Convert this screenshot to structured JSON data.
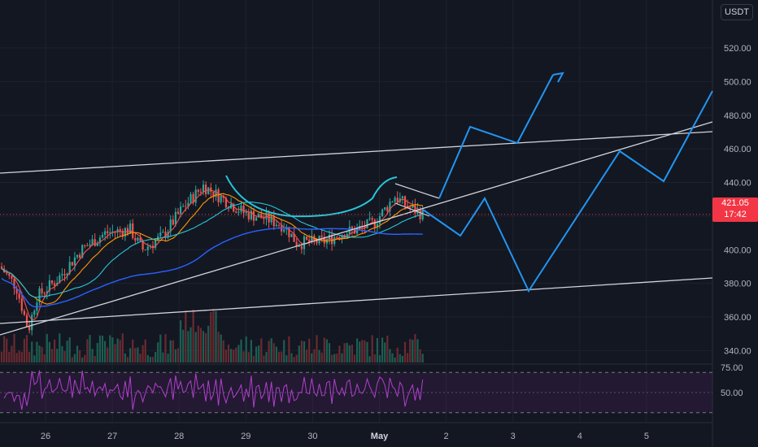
{
  "currency": "USDT",
  "price_label": {
    "price": "421.05",
    "countdown": "17:42"
  },
  "colors": {
    "bg": "#131722",
    "grid": "#1e222d",
    "up": "#26a69a",
    "down": "#ef5350",
    "projection": "#2196f3",
    "trendline": "#d1d4dc",
    "rsi": "#9c27b0",
    "price_tag": "#f23645"
  },
  "chart_data": [
    {
      "type": "candlestick",
      "y_ticks": [
        "520.00",
        "500.00",
        "480.00",
        "460.00",
        "440.00",
        "420.00",
        "400.00",
        "380.00",
        "360.00",
        "340.00"
      ],
      "x_ticks": [
        "26",
        "27",
        "28",
        "29",
        "30",
        "May",
        "2",
        "3",
        "4",
        "5"
      ],
      "ylim": [
        328,
        538
      ],
      "last_price": 421.05,
      "moving_averages": [
        "fast",
        "medium",
        "slow",
        "long"
      ],
      "projection_path": [
        {
          "x": "May 1.5",
          "y": 418
        },
        {
          "x": "May 1.8",
          "y": 400
        },
        {
          "x": "May 2.0",
          "y": 425
        },
        {
          "x": "May 2.4",
          "y": 366
        },
        {
          "x": "May 3.5",
          "y": 455
        },
        {
          "x": "May 4.3",
          "y": 435
        },
        {
          "x": "May 5.2",
          "y": 494
        }
      ],
      "projection_path_2": [
        {
          "x": "May 1.5",
          "y": 425
        },
        {
          "x": "May 1.8",
          "y": 470
        },
        {
          "x": "May 3.0",
          "y": 460
        },
        {
          "x": "May 3.6",
          "y": 503
        }
      ]
    },
    {
      "type": "line",
      "name": "RSI",
      "y_ticks": [
        "75.00",
        "50.00"
      ],
      "ylim": [
        22,
        78
      ]
    }
  ]
}
